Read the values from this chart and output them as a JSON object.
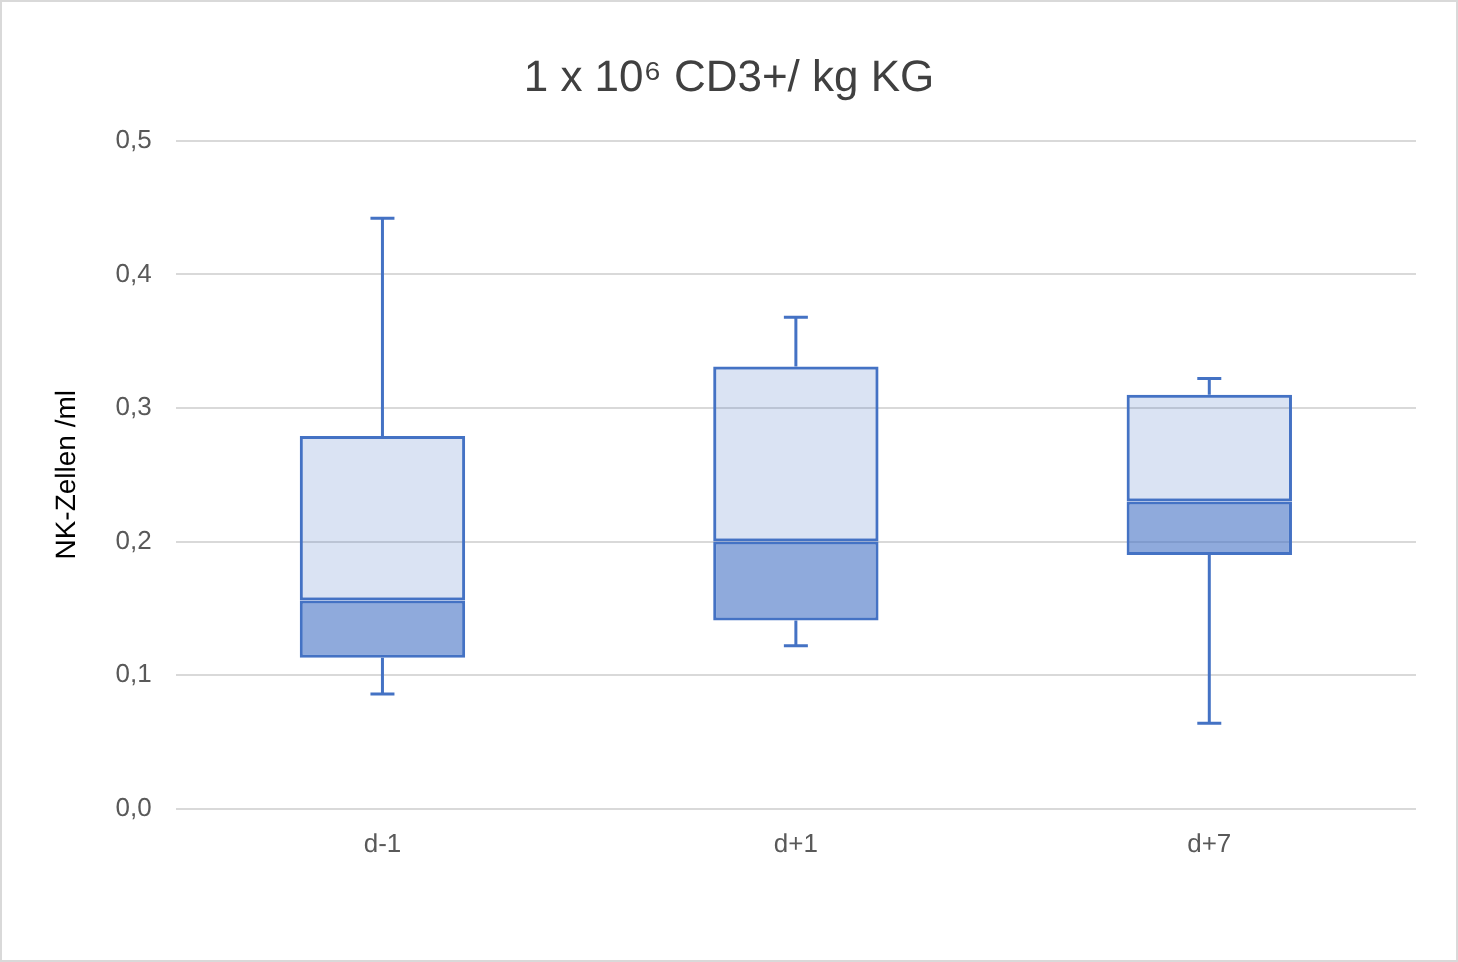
{
  "chart_data": {
    "type": "box",
    "title": "1 x 10⁶ CD3+/ kg KG",
    "ylabel": "NK-Zellen /ml",
    "categories": [
      "d-1",
      "d+1",
      "d+7"
    ],
    "series": [
      {
        "color": "#4472c4",
        "boxes": [
          {
            "low": 0.086,
            "q1": 0.113,
            "median": 0.156,
            "q3": 0.279,
            "high": 0.442
          },
          {
            "low": 0.122,
            "q1": 0.141,
            "median": 0.2,
            "q3": 0.331,
            "high": 0.368
          },
          {
            "low": 0.064,
            "q1": 0.19,
            "median": 0.23,
            "q3": 0.31,
            "high": 0.322
          }
        ]
      }
    ],
    "ylim": [
      0,
      0.5
    ],
    "yticks": [
      {
        "value": 0,
        "label": "0,0"
      },
      {
        "value": 0.1,
        "label": "0,1"
      },
      {
        "value": 0.2,
        "label": "0,2"
      },
      {
        "value": 0.3,
        "label": "0,3"
      },
      {
        "value": 0.4,
        "label": "0,4"
      },
      {
        "value": 0.5,
        "label": "0,5"
      }
    ],
    "grid": "y",
    "legend": false
  }
}
